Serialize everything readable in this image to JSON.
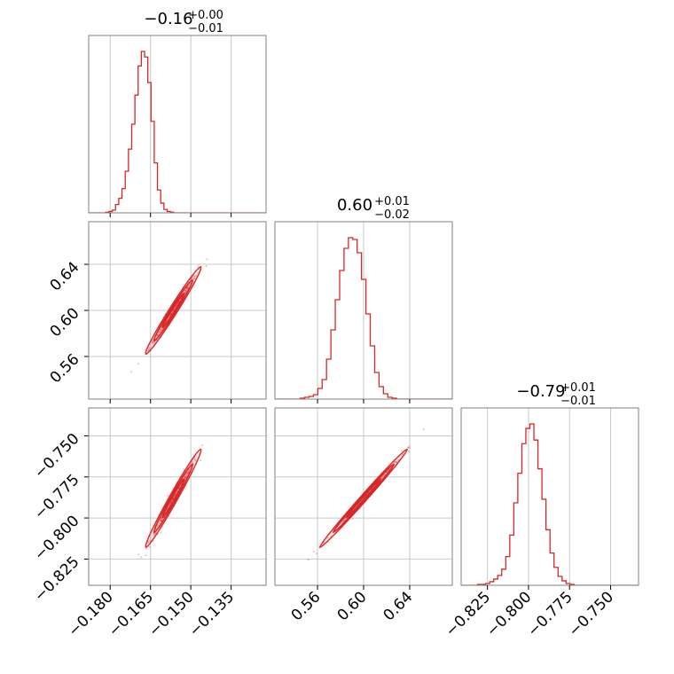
{
  "chart_data": {
    "type": "corner",
    "color": "#d62728",
    "grid": true,
    "parameters": [
      {
        "title_main": "−0.16",
        "title_sup": "+0.00",
        "title_sub": "−0.01",
        "range": [
          -0.188,
          -0.122
        ],
        "ticks": [
          -0.18,
          -0.165,
          -0.15,
          -0.135
        ],
        "tick_labels": [
          "−0.180",
          "−0.165",
          "−0.150",
          "−0.135"
        ],
        "hist": {
          "edges_start": -0.184,
          "bin_width": 0.0012,
          "counts": [
            0,
            0,
            1,
            2,
            4,
            12,
            21,
            35,
            60,
            92,
            128,
            170,
            212,
            233,
            225,
            188,
            132,
            72,
            33,
            14,
            5,
            2,
            1
          ]
        }
      },
      {
        "title_main": "0.60",
        "title_sup": "+0.01",
        "title_sub": "−0.02",
        "range": [
          0.523,
          0.677
        ],
        "ticks": [
          0.56,
          0.6,
          0.64
        ],
        "tick_labels": [
          "0.56",
          "0.60",
          "0.64"
        ],
        "hist": {
          "edges_start": 0.545,
          "bin_width": 0.0038,
          "counts": [
            1,
            2,
            3,
            5,
            12,
            22,
            45,
            78,
            112,
            145,
            170,
            182,
            180,
            165,
            135,
            96,
            60,
            30,
            14,
            6,
            2,
            1
          ]
        }
      },
      {
        "title_main": "−0.79",
        "title_sup": "+0.01",
        "title_sub": "−0.01",
        "range": [
          -0.841,
          -0.733
        ],
        "ticks": [
          -0.825,
          -0.8,
          -0.775,
          -0.75
        ],
        "tick_labels": [
          "−0.825",
          "−0.800",
          "−0.775",
          "−0.750"
        ],
        "hist": {
          "edges_start": -0.831,
          "bin_width": 0.00245,
          "counts": [
            1,
            1,
            2,
            4,
            7,
            11,
            18,
            32,
            56,
            92,
            125,
            158,
            175,
            180,
            162,
            130,
            96,
            62,
            36,
            20,
            10,
            5,
            2,
            1
          ]
        }
      }
    ],
    "pairs": [
      {
        "row": 1,
        "col": 0,
        "center": [
          -0.1565,
          0.6
        ],
        "sd": [
          0.0045,
          0.0165
        ],
        "rho": 0.985
      },
      {
        "row": 2,
        "col": 0,
        "center": [
          -0.1565,
          -0.788
        ],
        "sd": [
          0.0045,
          0.013
        ],
        "rho": 0.985
      },
      {
        "row": 2,
        "col": 1,
        "center": [
          0.6,
          -0.788
        ],
        "sd": [
          0.0165,
          0.013
        ],
        "rho": 0.995
      }
    ]
  }
}
